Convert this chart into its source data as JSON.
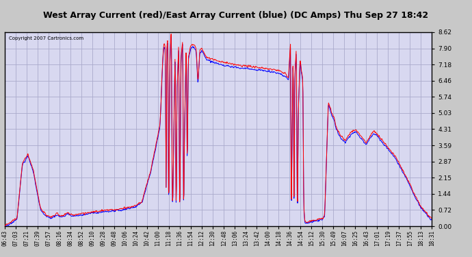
{
  "title": "West Array Current (red)/East Array Current (blue) (DC Amps) Thu Sep 27 18:42",
  "copyright": "Copyright 2007 Cartronics.com",
  "yticks": [
    0.0,
    0.72,
    1.44,
    2.15,
    2.87,
    3.59,
    4.31,
    5.03,
    5.74,
    6.46,
    7.18,
    7.9,
    8.62
  ],
  "ymin": 0.0,
  "ymax": 8.62,
  "bg_color": "#c8c8c8",
  "plot_bg": "#d8d8f0",
  "grid_color": "#aaaacc",
  "red_color": "#ff0000",
  "blue_color": "#0000ff",
  "title_bg": "#d0d0d0",
  "x_labels": [
    "06:43",
    "07:03",
    "07:21",
    "07:39",
    "07:57",
    "08:16",
    "08:34",
    "08:52",
    "09:10",
    "09:28",
    "09:48",
    "10:06",
    "10:24",
    "10:42",
    "11:00",
    "11:18",
    "11:36",
    "11:54",
    "12:12",
    "12:30",
    "12:48",
    "13:06",
    "13:24",
    "13:42",
    "14:00",
    "14:18",
    "14:36",
    "14:54",
    "15:12",
    "15:30",
    "15:49",
    "16:07",
    "16:25",
    "16:43",
    "17:01",
    "17:19",
    "17:37",
    "17:55",
    "18:13",
    "18:31"
  ]
}
